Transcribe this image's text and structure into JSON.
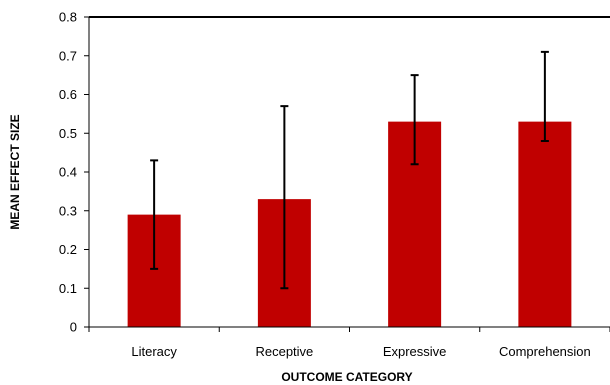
{
  "chart_data": {
    "type": "bar",
    "title": "",
    "xlabel": "OUTCOME CATEGORY",
    "ylabel": "MEAN EFFECT SIZE",
    "categories": [
      "Literacy",
      "Receptive",
      "Expressive",
      "Comprehension"
    ],
    "values": [
      0.29,
      0.33,
      0.53,
      0.53
    ],
    "error_low": [
      0.15,
      0.1,
      0.42,
      0.48
    ],
    "error_high": [
      0.43,
      0.57,
      0.65,
      0.71
    ],
    "ylim": [
      0,
      0.8
    ],
    "yticks": [
      "0",
      "0.1",
      "0.2",
      "0.3",
      "0.4",
      "0.5",
      "0.6",
      "0.7",
      "0.8"
    ],
    "grid": false,
    "legend": "none",
    "bar_color": "#c00000"
  }
}
